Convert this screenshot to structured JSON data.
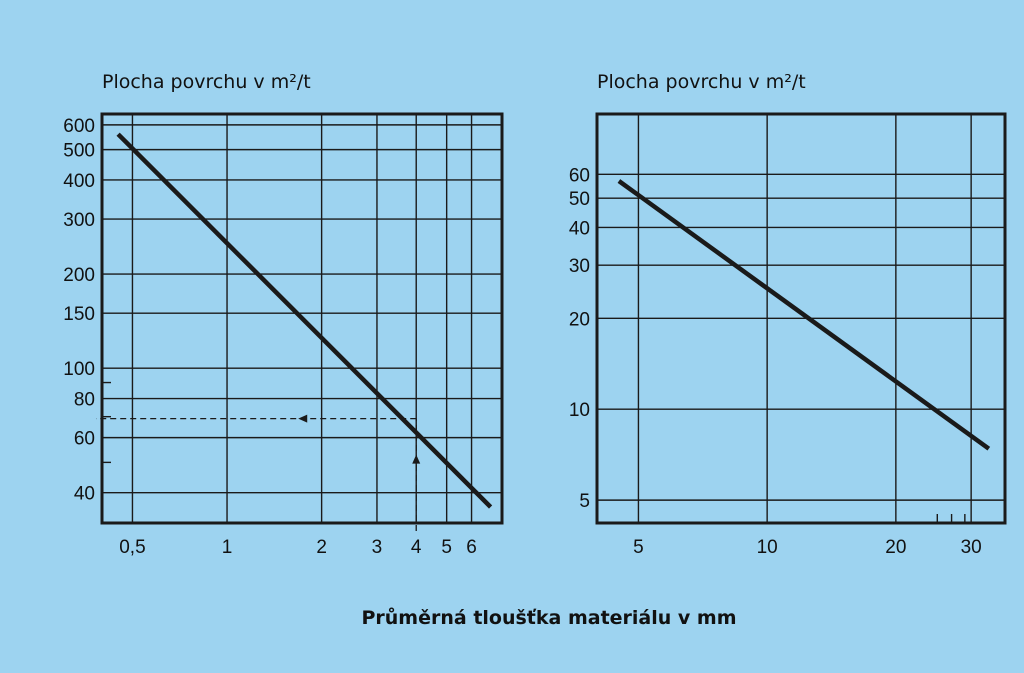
{
  "colors": {
    "background": "#9dd3f0",
    "plot_bg": "#9dd3f0",
    "line": "#1a1a1a",
    "grid": "#1a1a1a"
  },
  "x_title": "Průměrná tloušťka materiálu v mm",
  "chart_data": [
    {
      "type": "line",
      "ylabel": "Plocha povrchu v m²/t",
      "x_scale": "log",
      "y_scale": "log",
      "xlim": [
        0.4,
        7.5
      ],
      "ylim": [
        32,
        650
      ],
      "grid": true,
      "x_ticks": [
        {
          "value": 0.5,
          "label": "0,5"
        },
        {
          "value": 1,
          "label": "1"
        },
        {
          "value": 2,
          "label": "2"
        },
        {
          "value": 3,
          "label": "3"
        },
        {
          "value": 4,
          "label": "4"
        },
        {
          "value": 5,
          "label": "5"
        },
        {
          "value": 6,
          "label": "6"
        }
      ],
      "y_ticks": [
        {
          "value": 40,
          "label": "40"
        },
        {
          "value": 60,
          "label": "60"
        },
        {
          "value": 80,
          "label": "80"
        },
        {
          "value": 100,
          "label": "100"
        },
        {
          "value": 150,
          "label": "150"
        },
        {
          "value": 200,
          "label": "200"
        },
        {
          "value": 300,
          "label": "300"
        },
        {
          "value": 400,
          "label": "400"
        },
        {
          "value": 500,
          "label": "500"
        },
        {
          "value": 600,
          "label": "600"
        }
      ],
      "y_minor": [
        50,
        70,
        90
      ],
      "series": [
        {
          "x": [
            0.45,
            6.9
          ],
          "y": [
            560,
            36
          ]
        }
      ],
      "annotation": {
        "x": 4,
        "y": 69,
        "style": "dashed-arrows"
      }
    },
    {
      "type": "line",
      "ylabel": "Plocha povrchu v m²/t",
      "x_scale": "log",
      "y_scale": "log",
      "xlim": [
        4,
        36
      ],
      "ylim": [
        4.2,
        95
      ],
      "grid": true,
      "x_ticks": [
        {
          "value": 5,
          "label": "5"
        },
        {
          "value": 10,
          "label": "10"
        },
        {
          "value": 20,
          "label": "20"
        },
        {
          "value": 30,
          "label": "30"
        }
      ],
      "y_ticks": [
        {
          "value": 5,
          "label": "5"
        },
        {
          "value": 10,
          "label": "10"
        },
        {
          "value": 20,
          "label": "20"
        },
        {
          "value": 30,
          "label": "30"
        },
        {
          "value": 40,
          "label": "40"
        },
        {
          "value": 50,
          "label": "50"
        },
        {
          "value": 60,
          "label": "60"
        }
      ],
      "x_minor": [
        25,
        27,
        29
      ],
      "series": [
        {
          "x": [
            4.5,
            33
          ],
          "y": [
            57,
            7.4
          ]
        }
      ]
    }
  ]
}
